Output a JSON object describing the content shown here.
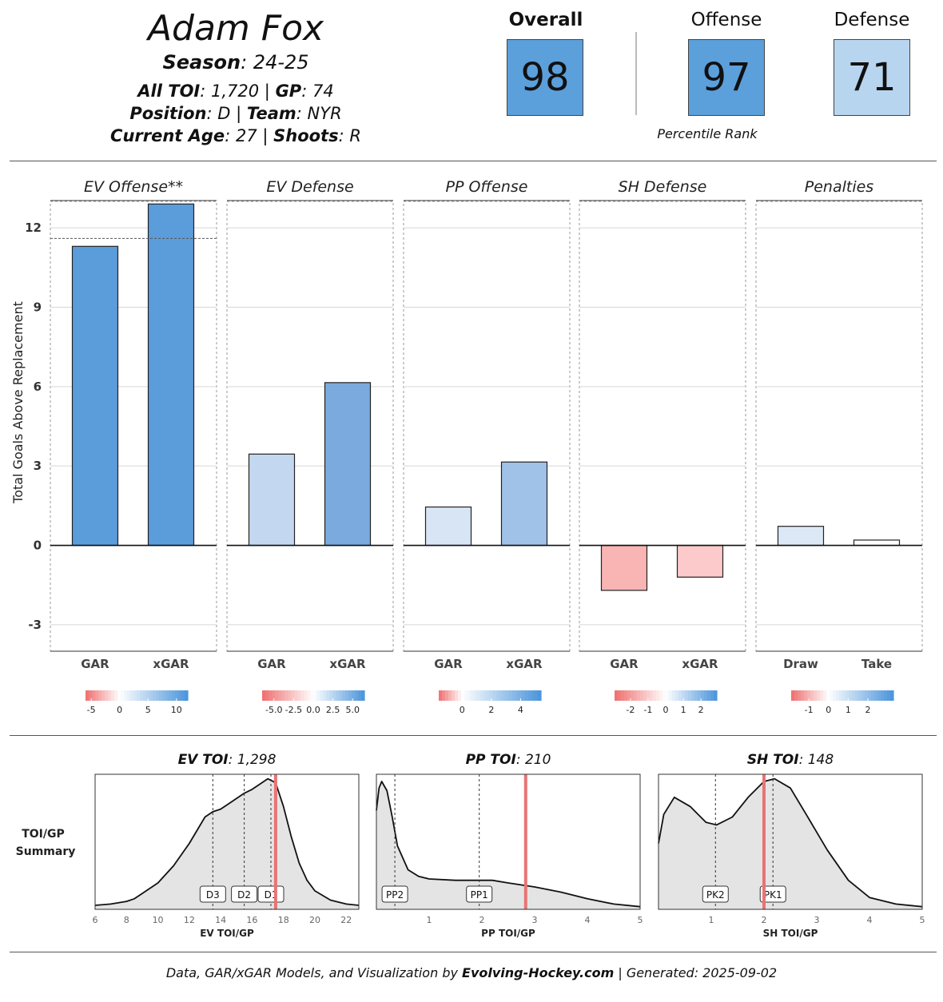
{
  "player": {
    "name": "Adam Fox",
    "season_label": "Season",
    "season": "24-25",
    "toi_label": "All TOI",
    "toi": "1,720",
    "gp_label": "GP",
    "gp": "74",
    "position_label": "Position",
    "position": "D",
    "team_label": "Team",
    "team": "NYR",
    "age_label": "Current Age",
    "age": "27",
    "shoots_label": "Shoots",
    "shoots": "R"
  },
  "ranks": {
    "overall_label": "Overall",
    "overall": "98",
    "overall_color": "#5b9fdb",
    "offense_label": "Offense",
    "offense": "97",
    "offense_color": "#5b9fdb",
    "defense_label": "Defense",
    "defense": "71",
    "defense_color": "#b8d5f0",
    "caption": "Percentile Rank"
  },
  "chart_data": [
    {
      "type": "bar",
      "ylabel": "Total Goals Above Replacement",
      "ylim": [
        -4.0,
        13.0
      ],
      "yticks": [
        -3,
        0,
        3,
        6,
        9,
        12
      ],
      "panels": [
        {
          "title": "EV Offense**",
          "categories": [
            "GAR",
            "xGAR"
          ],
          "values": [
            11.3,
            12.9
          ],
          "colors": [
            "#5b9cdb",
            "#5b9cdb"
          ],
          "reference_line": 11.6,
          "legend": {
            "ticks": [
              "-5",
              "0",
              "5",
              "10"
            ],
            "tick_values": [
              -5,
              0,
              5,
              10
            ],
            "min": -6,
            "max": 12
          }
        },
        {
          "title": "EV Defense",
          "categories": [
            "GAR",
            "xGAR"
          ],
          "values": [
            3.45,
            6.15
          ],
          "colors": [
            "#c3d8f0",
            "#7aaade"
          ],
          "legend": {
            "ticks": [
              "-5.0",
              "-2.5",
              "0.0",
              "2.5",
              "5.0"
            ],
            "tick_values": [
              -5,
              -2.5,
              0,
              2.5,
              5
            ],
            "min": -6.5,
            "max": 6.5
          }
        },
        {
          "title": "PP Offense",
          "categories": [
            "GAR",
            "xGAR"
          ],
          "values": [
            1.45,
            3.15
          ],
          "colors": [
            "#d8e5f5",
            "#a1c2e8"
          ],
          "legend": {
            "ticks": [
              "0",
              "2",
              "4"
            ],
            "tick_values": [
              0,
              2,
              4
            ],
            "min": -1.6,
            "max": 5.4
          }
        },
        {
          "title": "SH Defense",
          "categories": [
            "GAR",
            "xGAR"
          ],
          "values": [
            -1.7,
            -1.2
          ],
          "colors": [
            "#f9b4b4",
            "#fccaca"
          ],
          "legend": {
            "ticks": [
              "-2",
              "-1",
              "0",
              "1",
              "2"
            ],
            "tick_values": [
              -2,
              -1,
              0,
              1,
              2
            ],
            "min": -2.9,
            "max": 2.9
          }
        },
        {
          "title": "Penalties",
          "categories": [
            "Draw",
            "Take"
          ],
          "values": [
            0.72,
            0.2
          ],
          "colors": [
            "#dce8f6",
            "#ffffff"
          ],
          "legend": {
            "ticks": [
              "-1",
              "0",
              "1",
              "2"
            ],
            "tick_values": [
              -1,
              0,
              1,
              2
            ],
            "min": -1.9,
            "max": 3.3
          }
        }
      ]
    },
    {
      "type": "area",
      "row_label": [
        "TOI/GP",
        "Summary"
      ],
      "panels": [
        {
          "title_bold": "EV TOI",
          "title_value": "1,298",
          "xlabel": "EV TOI/GP",
          "xlim": [
            6,
            22.8
          ],
          "xticks": [
            6,
            8,
            10,
            12,
            14,
            16,
            18,
            20,
            22
          ],
          "density_x": [
            6,
            7,
            8,
            8.5,
            9,
            10,
            11,
            12,
            12.5,
            13,
            13.5,
            14,
            14.5,
            15,
            15.5,
            16,
            16.5,
            17,
            17.5,
            18,
            18.5,
            19,
            19.5,
            20,
            21,
            22,
            22.8
          ],
          "density_y": [
            0.03,
            0.04,
            0.06,
            0.08,
            0.12,
            0.2,
            0.33,
            0.5,
            0.6,
            0.7,
            0.74,
            0.76,
            0.8,
            0.84,
            0.88,
            0.91,
            0.95,
            0.99,
            0.96,
            0.78,
            0.55,
            0.35,
            0.22,
            0.14,
            0.07,
            0.04,
            0.03
          ],
          "markers": [
            {
              "label": "D3",
              "x": 13.5
            },
            {
              "label": "D2",
              "x": 15.5
            },
            {
              "label": "D1",
              "x": 17.2
            }
          ],
          "player_value": 17.5
        },
        {
          "title_bold": "PP TOI",
          "title_value": "210",
          "xlabel": "PP TOI/GP",
          "xlim": [
            0,
            5
          ],
          "xticks": [
            1,
            2,
            3,
            4,
            5
          ],
          "density_x": [
            0,
            0.05,
            0.1,
            0.2,
            0.3,
            0.4,
            0.6,
            0.8,
            1,
            1.5,
            2,
            2.2,
            2.5,
            3,
            3.5,
            4,
            4.5,
            5
          ],
          "density_y": [
            0.75,
            0.92,
            0.97,
            0.9,
            0.7,
            0.48,
            0.3,
            0.25,
            0.23,
            0.22,
            0.22,
            0.22,
            0.2,
            0.17,
            0.13,
            0.08,
            0.04,
            0.02
          ],
          "markers": [
            {
              "label": "PP2",
              "x": 0.35
            },
            {
              "label": "PP1",
              "x": 1.95
            }
          ],
          "player_value": 2.83
        },
        {
          "title_bold": "SH TOI",
          "title_value": "148",
          "xlabel": "SH TOI/GP",
          "xlim": [
            0,
            5
          ],
          "xticks": [
            1,
            2,
            3,
            4,
            5
          ],
          "density_x": [
            0,
            0.1,
            0.3,
            0.6,
            0.9,
            1.1,
            1.4,
            1.7,
            2,
            2.2,
            2.5,
            2.8,
            3.2,
            3.6,
            4,
            4.5,
            5
          ],
          "density_y": [
            0.5,
            0.72,
            0.85,
            0.78,
            0.66,
            0.64,
            0.7,
            0.85,
            0.97,
            0.99,
            0.92,
            0.72,
            0.45,
            0.22,
            0.09,
            0.04,
            0.02
          ],
          "markers": [
            {
              "label": "PK2",
              "x": 1.08
            },
            {
              "label": "PK1",
              "x": 2.17
            }
          ],
          "player_value": 2.0
        }
      ]
    }
  ],
  "footer": {
    "prefix": "Data, GAR/xGAR Models, and Visualization by ",
    "brand": "Evolving-Hockey.com",
    "suffix": " | Generated: 2025-09-02"
  }
}
